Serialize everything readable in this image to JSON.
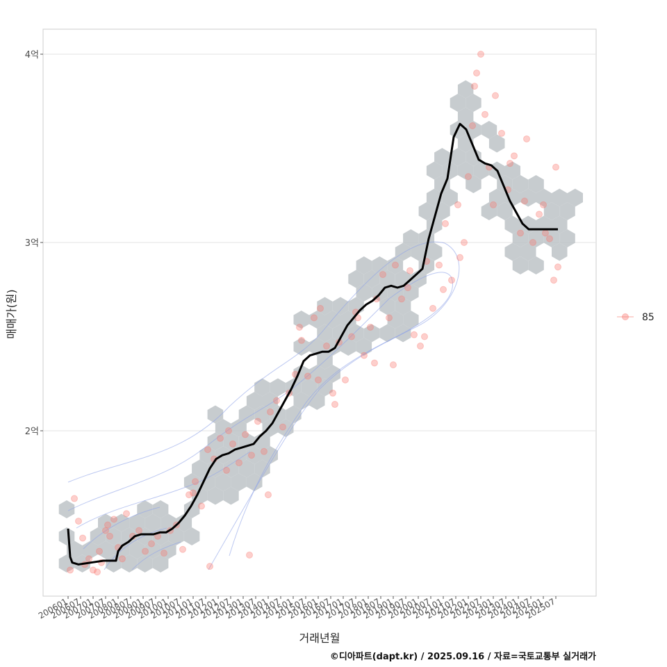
{
  "chart_data": {
    "type": "scatter",
    "xlabel": "거래년월",
    "ylabel": "매매가(원)",
    "x_range": [
      "2006-01",
      "2025-12"
    ],
    "ylim": [
      1.15,
      4.1
    ],
    "y_ticks": [
      {
        "value": 2,
        "label": "2억"
      },
      {
        "value": 3,
        "label": "3억"
      },
      {
        "value": 4,
        "label": "4억"
      }
    ],
    "x_tick_labels": [
      "200601",
      "200607",
      "200701",
      "200707",
      "200801",
      "200807",
      "200901",
      "200907",
      "201001",
      "201007",
      "201101",
      "201107",
      "201201",
      "201207",
      "201301",
      "201307",
      "201401",
      "201407",
      "201501",
      "201507",
      "201601",
      "201607",
      "201701",
      "201707",
      "201801",
      "201807",
      "201901",
      "201907",
      "202001",
      "202007",
      "202101",
      "202107",
      "202201",
      "202207",
      "202301",
      "202307",
      "202401",
      "202407",
      "202501",
      "202507"
    ],
    "legend": {
      "position": "right",
      "entries": [
        {
          "label": "85",
          "color": "#f8766d"
        }
      ]
    },
    "grid": true,
    "layers": [
      "hexbin density (gray)",
      "2D density contours (blue)",
      "transaction points (pink)",
      "moving average line (black)"
    ],
    "series": [
      {
        "name": "85",
        "kind": "moving_average",
        "x": [
          "2006-01",
          "2006-02",
          "2006-03",
          "2006-06",
          "2006-12",
          "2007-06",
          "2007-12",
          "2008-01",
          "2008-03",
          "2008-06",
          "2008-09",
          "2008-12",
          "2009-06",
          "2009-09",
          "2009-12",
          "2010-03",
          "2010-06",
          "2010-09",
          "2010-12",
          "2011-03",
          "2011-06",
          "2011-09",
          "2011-12",
          "2012-03",
          "2012-06",
          "2012-09",
          "2012-12",
          "2013-03",
          "2013-06",
          "2013-09",
          "2013-12",
          "2014-03",
          "2014-06",
          "2014-09",
          "2014-12",
          "2015-03",
          "2015-06",
          "2015-09",
          "2015-12",
          "2016-03",
          "2016-06",
          "2016-09",
          "2016-12",
          "2017-03",
          "2017-06",
          "2017-09",
          "2017-12",
          "2018-03",
          "2018-06",
          "2018-09",
          "2018-12",
          "2019-03",
          "2019-06",
          "2019-09",
          "2019-12",
          "2020-03",
          "2020-06",
          "2020-09",
          "2020-12",
          "2021-03",
          "2021-06",
          "2021-09",
          "2021-12",
          "2022-03",
          "2022-06",
          "2022-09",
          "2022-12",
          "2023-03",
          "2023-06",
          "2023-09",
          "2023-12",
          "2024-03",
          "2024-06",
          "2024-09",
          "2024-12",
          "2025-03",
          "2025-06",
          "2025-08"
        ],
        "y": [
          1.48,
          1.33,
          1.3,
          1.29,
          1.3,
          1.31,
          1.31,
          1.36,
          1.39,
          1.41,
          1.44,
          1.45,
          1.45,
          1.46,
          1.46,
          1.48,
          1.51,
          1.55,
          1.6,
          1.66,
          1.73,
          1.8,
          1.85,
          1.87,
          1.88,
          1.9,
          1.91,
          1.92,
          1.93,
          1.97,
          2.0,
          2.04,
          2.1,
          2.16,
          2.22,
          2.29,
          2.37,
          2.4,
          2.41,
          2.42,
          2.42,
          2.44,
          2.5,
          2.56,
          2.6,
          2.64,
          2.67,
          2.69,
          2.72,
          2.76,
          2.77,
          2.76,
          2.77,
          2.8,
          2.83,
          2.86,
          3.02,
          3.14,
          3.26,
          3.34,
          3.56,
          3.63,
          3.6,
          3.52,
          3.44,
          3.42,
          3.41,
          3.38,
          3.3,
          3.22,
          3.16,
          3.1,
          3.07,
          3.07,
          3.07,
          3.07,
          3.07,
          3.07
        ]
      },
      {
        "name": "85",
        "kind": "transactions",
        "x": [
          "2006-02",
          "2006-04",
          "2006-06",
          "2006-08",
          "2006-09",
          "2006-11",
          "2007-01",
          "2007-03",
          "2007-05",
          "2007-07",
          "2007-09",
          "2007-11",
          "2007-04",
          "2007-08",
          "2008-01",
          "2008-03",
          "2008-05",
          "2008-08",
          "2008-11",
          "2009-02",
          "2009-05",
          "2009-08",
          "2009-11",
          "2010-02",
          "2010-05",
          "2010-08",
          "2010-11",
          "2011-02",
          "2011-05",
          "2011-08",
          "2011-11",
          "2012-02",
          "2012-05",
          "2012-08",
          "2012-11",
          "2013-02",
          "2013-05",
          "2013-08",
          "2013-11",
          "2014-02",
          "2014-05",
          "2014-08",
          "2014-11",
          "2015-02",
          "2015-05",
          "2015-08",
          "2015-11",
          "2016-02",
          "2016-05",
          "2016-08",
          "2016-11",
          "2017-02",
          "2017-05",
          "2017-08",
          "2017-11",
          "2018-02",
          "2018-05",
          "2018-08",
          "2018-11",
          "2019-02",
          "2019-05",
          "2019-08",
          "2019-11",
          "2020-02",
          "2020-05",
          "2020-08",
          "2020-11",
          "2021-02",
          "2021-05",
          "2021-08",
          "2021-11",
          "2022-01",
          "2022-03",
          "2022-05",
          "2022-07",
          "2022-09",
          "2022-11",
          "2023-02",
          "2023-05",
          "2023-08",
          "2023-11",
          "2024-02",
          "2024-05",
          "2024-08",
          "2024-11",
          "2025-02",
          "2025-04",
          "2025-06",
          "2025-07",
          "2025-08",
          "2011-01",
          "2011-09",
          "2012-06",
          "2013-04",
          "2014-01",
          "2015-04",
          "2016-01",
          "2016-09",
          "2017-07",
          "2018-04",
          "2019-01",
          "2019-09",
          "2020-04",
          "2021-01",
          "2021-09",
          "2022-04",
          "2023-01",
          "2023-09",
          "2024-04",
          "2025-01"
        ],
        "y": [
          1.26,
          1.64,
          1.52,
          1.43,
          1.29,
          1.32,
          1.26,
          1.25,
          1.3,
          1.47,
          1.44,
          1.53,
          1.36,
          1.5,
          1.38,
          1.32,
          1.56,
          1.44,
          1.47,
          1.36,
          1.4,
          1.44,
          1.35,
          1.47,
          1.5,
          1.37,
          1.66,
          1.73,
          1.6,
          1.9,
          1.85,
          1.96,
          1.79,
          1.93,
          1.83,
          1.98,
          1.87,
          2.05,
          1.89,
          2.1,
          2.16,
          2.02,
          2.2,
          2.3,
          2.48,
          2.29,
          2.6,
          2.65,
          2.45,
          2.2,
          2.47,
          2.27,
          2.5,
          2.6,
          2.4,
          2.55,
          2.7,
          2.83,
          2.6,
          2.88,
          2.7,
          2.76,
          2.51,
          2.45,
          2.9,
          2.65,
          2.88,
          3.1,
          2.8,
          3.2,
          3.0,
          3.35,
          3.62,
          3.9,
          4.0,
          3.68,
          3.4,
          3.78,
          3.58,
          3.28,
          3.46,
          3.05,
          3.55,
          3.0,
          3.15,
          3.05,
          3.02,
          2.8,
          3.4,
          2.87,
          1.67,
          1.28,
          2.0,
          1.34,
          1.66,
          2.55,
          2.27,
          2.14,
          2.63,
          2.36,
          2.35,
          2.85,
          2.5,
          2.75,
          2.92,
          3.83,
          3.2,
          3.42,
          3.22,
          3.2
        ]
      }
    ]
  },
  "caption": "©디아파트(dapt.kr) / 2025.09.16 / 자료=국토교통부 실거래가"
}
